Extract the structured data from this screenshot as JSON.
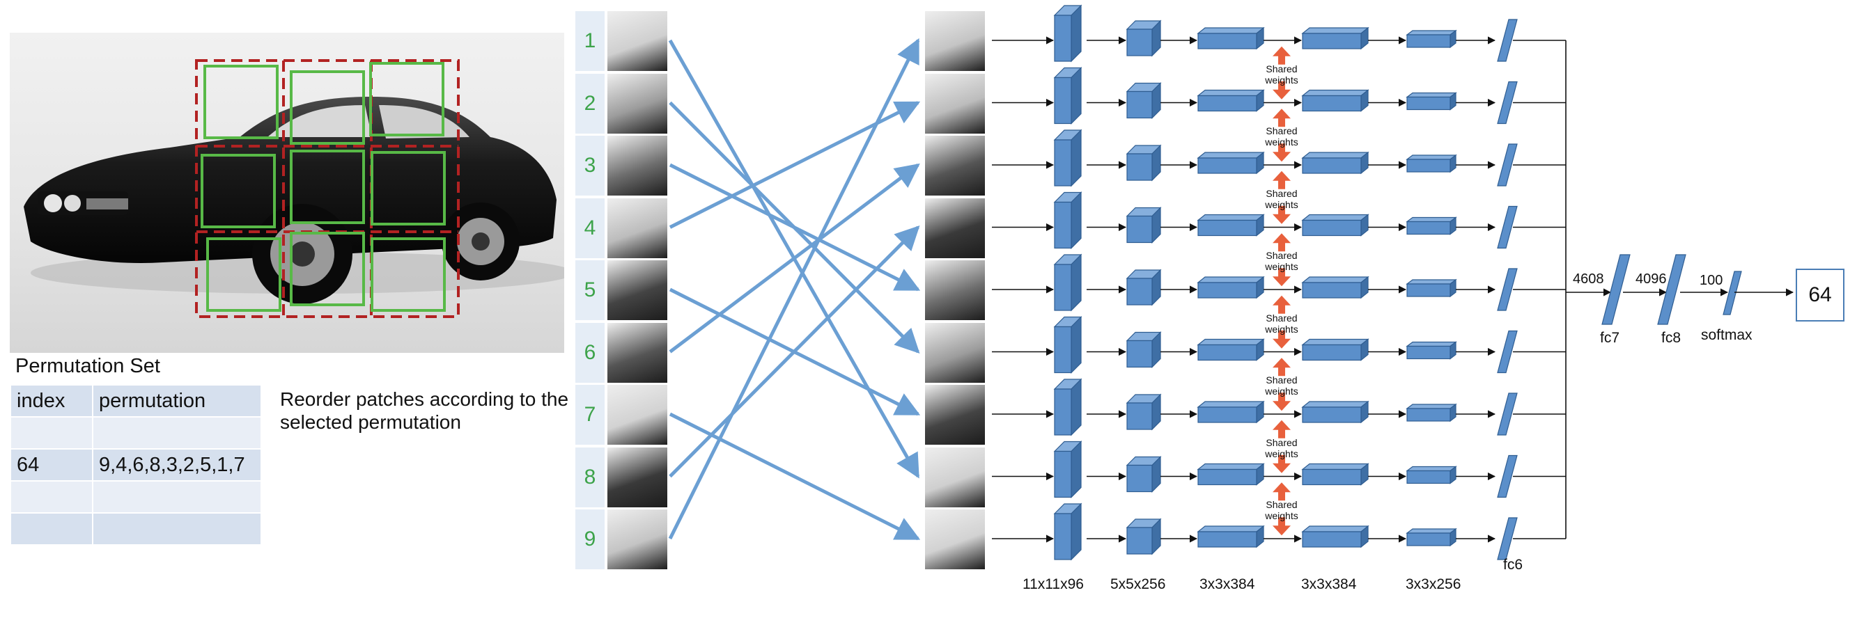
{
  "photo": {
    "alt_semantic": "black classic car with 3x3 patch grid"
  },
  "permutation_set": {
    "title": "Permutation Set",
    "headers": [
      "index",
      "permutation"
    ],
    "rows": [
      [
        "",
        ""
      ],
      [
        "64",
        "9,4,6,8,3,2,5,1,7"
      ],
      [
        "",
        ""
      ],
      [
        "",
        ""
      ]
    ],
    "note": "Reorder patches according to the selected permutation"
  },
  "patch_indices": [
    "1",
    "2",
    "3",
    "4",
    "5",
    "6",
    "7",
    "8",
    "9"
  ],
  "permutation_order": [
    9,
    4,
    6,
    8,
    3,
    2,
    5,
    1,
    7
  ],
  "shared_label": "Shared weights",
  "layer_labels": [
    "11x11x96",
    "5x5x256",
    "3x3x384",
    "3x3x384",
    "3x3x256",
    "fc6"
  ],
  "head": {
    "fc7_label": "fc7",
    "fc8_label": "fc8",
    "softmax_label": "softmax",
    "dim_4608": "4608",
    "dim_4096": "4096",
    "dim_100": "100",
    "output": "64"
  },
  "colors": {
    "box": "#5b8fca",
    "box_top": "#86afdd",
    "box_side": "#3f6fa5",
    "arrow_blue": "#6b9fd3",
    "shared": "#e8603c",
    "green": "#58b947",
    "red_dash": "#b22222"
  }
}
